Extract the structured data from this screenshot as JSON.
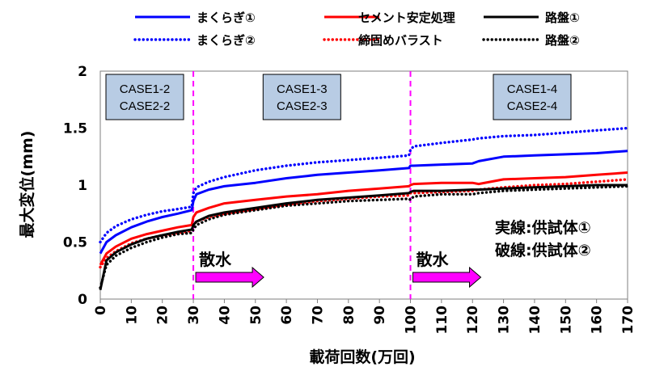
{
  "chart_data": {
    "type": "line",
    "xlabel": "載荷回数(万回)",
    "ylabel": "最大変位(mm)",
    "xlim": [
      0,
      170
    ],
    "ylim": [
      0,
      2
    ],
    "xticks": [
      0,
      10,
      20,
      30,
      40,
      50,
      60,
      70,
      80,
      90,
      100,
      110,
      120,
      130,
      140,
      150,
      160,
      170
    ],
    "yticks": [
      0,
      0.5,
      1,
      1.5,
      2
    ],
    "ytick_labels": [
      "0",
      "0.5",
      "1",
      "1.5",
      "2"
    ],
    "grid": "none",
    "legend_placement": "top",
    "series": [
      {
        "name": "まくらぎ①",
        "color": "#0000FF",
        "style": "solid",
        "x": [
          0,
          2,
          5,
          10,
          15,
          20,
          25,
          29.5,
          30,
          31,
          35,
          40,
          50,
          60,
          70,
          80,
          90,
          99.5,
          100,
          101,
          110,
          120,
          122,
          130,
          140,
          150,
          160,
          170
        ],
        "y": [
          0.4,
          0.5,
          0.56,
          0.63,
          0.68,
          0.72,
          0.75,
          0.78,
          0.86,
          0.92,
          0.96,
          0.99,
          1.02,
          1.06,
          1.09,
          1.11,
          1.13,
          1.15,
          1.17,
          1.17,
          1.18,
          1.19,
          1.21,
          1.25,
          1.26,
          1.27,
          1.28,
          1.3
        ]
      },
      {
        "name": "まくらぎ②",
        "color": "#0000FF",
        "style": "dotted",
        "x": [
          0,
          2,
          5,
          10,
          15,
          20,
          25,
          29.5,
          30,
          31,
          35,
          40,
          50,
          60,
          70,
          80,
          90,
          99.5,
          100,
          101,
          110,
          120,
          122,
          130,
          140,
          150,
          160,
          170
        ],
        "y": [
          0.5,
          0.58,
          0.64,
          0.7,
          0.74,
          0.77,
          0.79,
          0.81,
          0.93,
          0.98,
          1.03,
          1.07,
          1.13,
          1.17,
          1.2,
          1.22,
          1.24,
          1.26,
          1.31,
          1.34,
          1.37,
          1.4,
          1.41,
          1.43,
          1.44,
          1.46,
          1.48,
          1.5
        ]
      },
      {
        "name": "セメント安定処理",
        "color": "#FF0000",
        "style": "solid",
        "x": [
          0,
          2,
          5,
          10,
          15,
          20,
          25,
          29.5,
          30,
          31,
          35,
          40,
          50,
          60,
          70,
          80,
          90,
          99.5,
          100,
          101,
          110,
          120,
          122,
          130,
          140,
          150,
          160,
          170
        ],
        "y": [
          0.3,
          0.4,
          0.46,
          0.53,
          0.57,
          0.6,
          0.63,
          0.65,
          0.72,
          0.76,
          0.8,
          0.84,
          0.87,
          0.9,
          0.92,
          0.95,
          0.97,
          0.99,
          1.0,
          1.01,
          1.02,
          1.02,
          1.01,
          1.05,
          1.06,
          1.07,
          1.09,
          1.11
        ]
      },
      {
        "name": "締固めバラスト",
        "color": "#FF0000",
        "style": "dotted",
        "x": [
          0,
          2,
          5,
          10,
          15,
          20,
          25,
          29.5,
          30,
          31,
          35,
          40,
          50,
          60,
          70,
          80,
          90,
          99.5,
          100,
          101,
          110,
          120,
          122,
          130,
          140,
          150,
          160,
          170
        ],
        "y": [
          0.28,
          0.36,
          0.42,
          0.49,
          0.53,
          0.56,
          0.58,
          0.6,
          0.65,
          0.68,
          0.72,
          0.75,
          0.79,
          0.83,
          0.86,
          0.88,
          0.9,
          0.91,
          0.93,
          0.93,
          0.94,
          0.95,
          0.96,
          0.98,
          1.0,
          1.01,
          1.03,
          1.05
        ]
      },
      {
        "name": "路盤①",
        "color": "#000000",
        "style": "solid",
        "x": [
          0,
          2,
          5,
          10,
          15,
          20,
          25,
          29.5,
          30,
          31,
          35,
          40,
          50,
          60,
          70,
          80,
          90,
          99.5,
          100,
          101,
          110,
          120,
          122,
          130,
          140,
          150,
          160,
          170
        ],
        "y": [
          0.08,
          0.34,
          0.41,
          0.48,
          0.53,
          0.56,
          0.59,
          0.61,
          0.65,
          0.68,
          0.73,
          0.76,
          0.8,
          0.84,
          0.87,
          0.89,
          0.91,
          0.93,
          0.94,
          0.95,
          0.95,
          0.96,
          0.96,
          0.97,
          0.98,
          0.99,
          1.0,
          1.0
        ]
      },
      {
        "name": "路盤②",
        "color": "#000000",
        "style": "dotted",
        "x": [
          0,
          2,
          5,
          10,
          15,
          20,
          25,
          29.5,
          30,
          31,
          35,
          40,
          50,
          60,
          70,
          80,
          90,
          99.5,
          100,
          101,
          110,
          120,
          122,
          130,
          140,
          150,
          160,
          170
        ],
        "y": [
          0.1,
          0.3,
          0.38,
          0.45,
          0.5,
          0.54,
          0.57,
          0.58,
          0.61,
          0.65,
          0.7,
          0.74,
          0.78,
          0.82,
          0.84,
          0.86,
          0.87,
          0.88,
          0.87,
          0.9,
          0.92,
          0.92,
          0.93,
          0.95,
          0.96,
          0.97,
          0.98,
          0.99
        ]
      }
    ],
    "vlines": [
      30,
      100
    ],
    "vline_color": "#FF00FF",
    "case_boxes": [
      {
        "lines": [
          "CASE1-2",
          "CASE2-2"
        ],
        "x_from": 0,
        "x_to": 30
      },
      {
        "lines": [
          "CASE1-3",
          "CASE2-3"
        ],
        "x_from": 30,
        "x_to": 100
      },
      {
        "lines": [
          "CASE1-4",
          "CASE2-4"
        ],
        "x_from": 100,
        "x_to": 170
      }
    ],
    "case_box_fill": "#B8CCE4",
    "annotations": [
      {
        "text": "散水",
        "x": 30,
        "y_arrow": 0.2
      },
      {
        "text": "散水",
        "x": 100,
        "y_arrow": 0.2
      }
    ],
    "arrow_color": "#FF00FF",
    "notes": [
      "実線:供試体①",
      "破線:供試体②"
    ]
  }
}
